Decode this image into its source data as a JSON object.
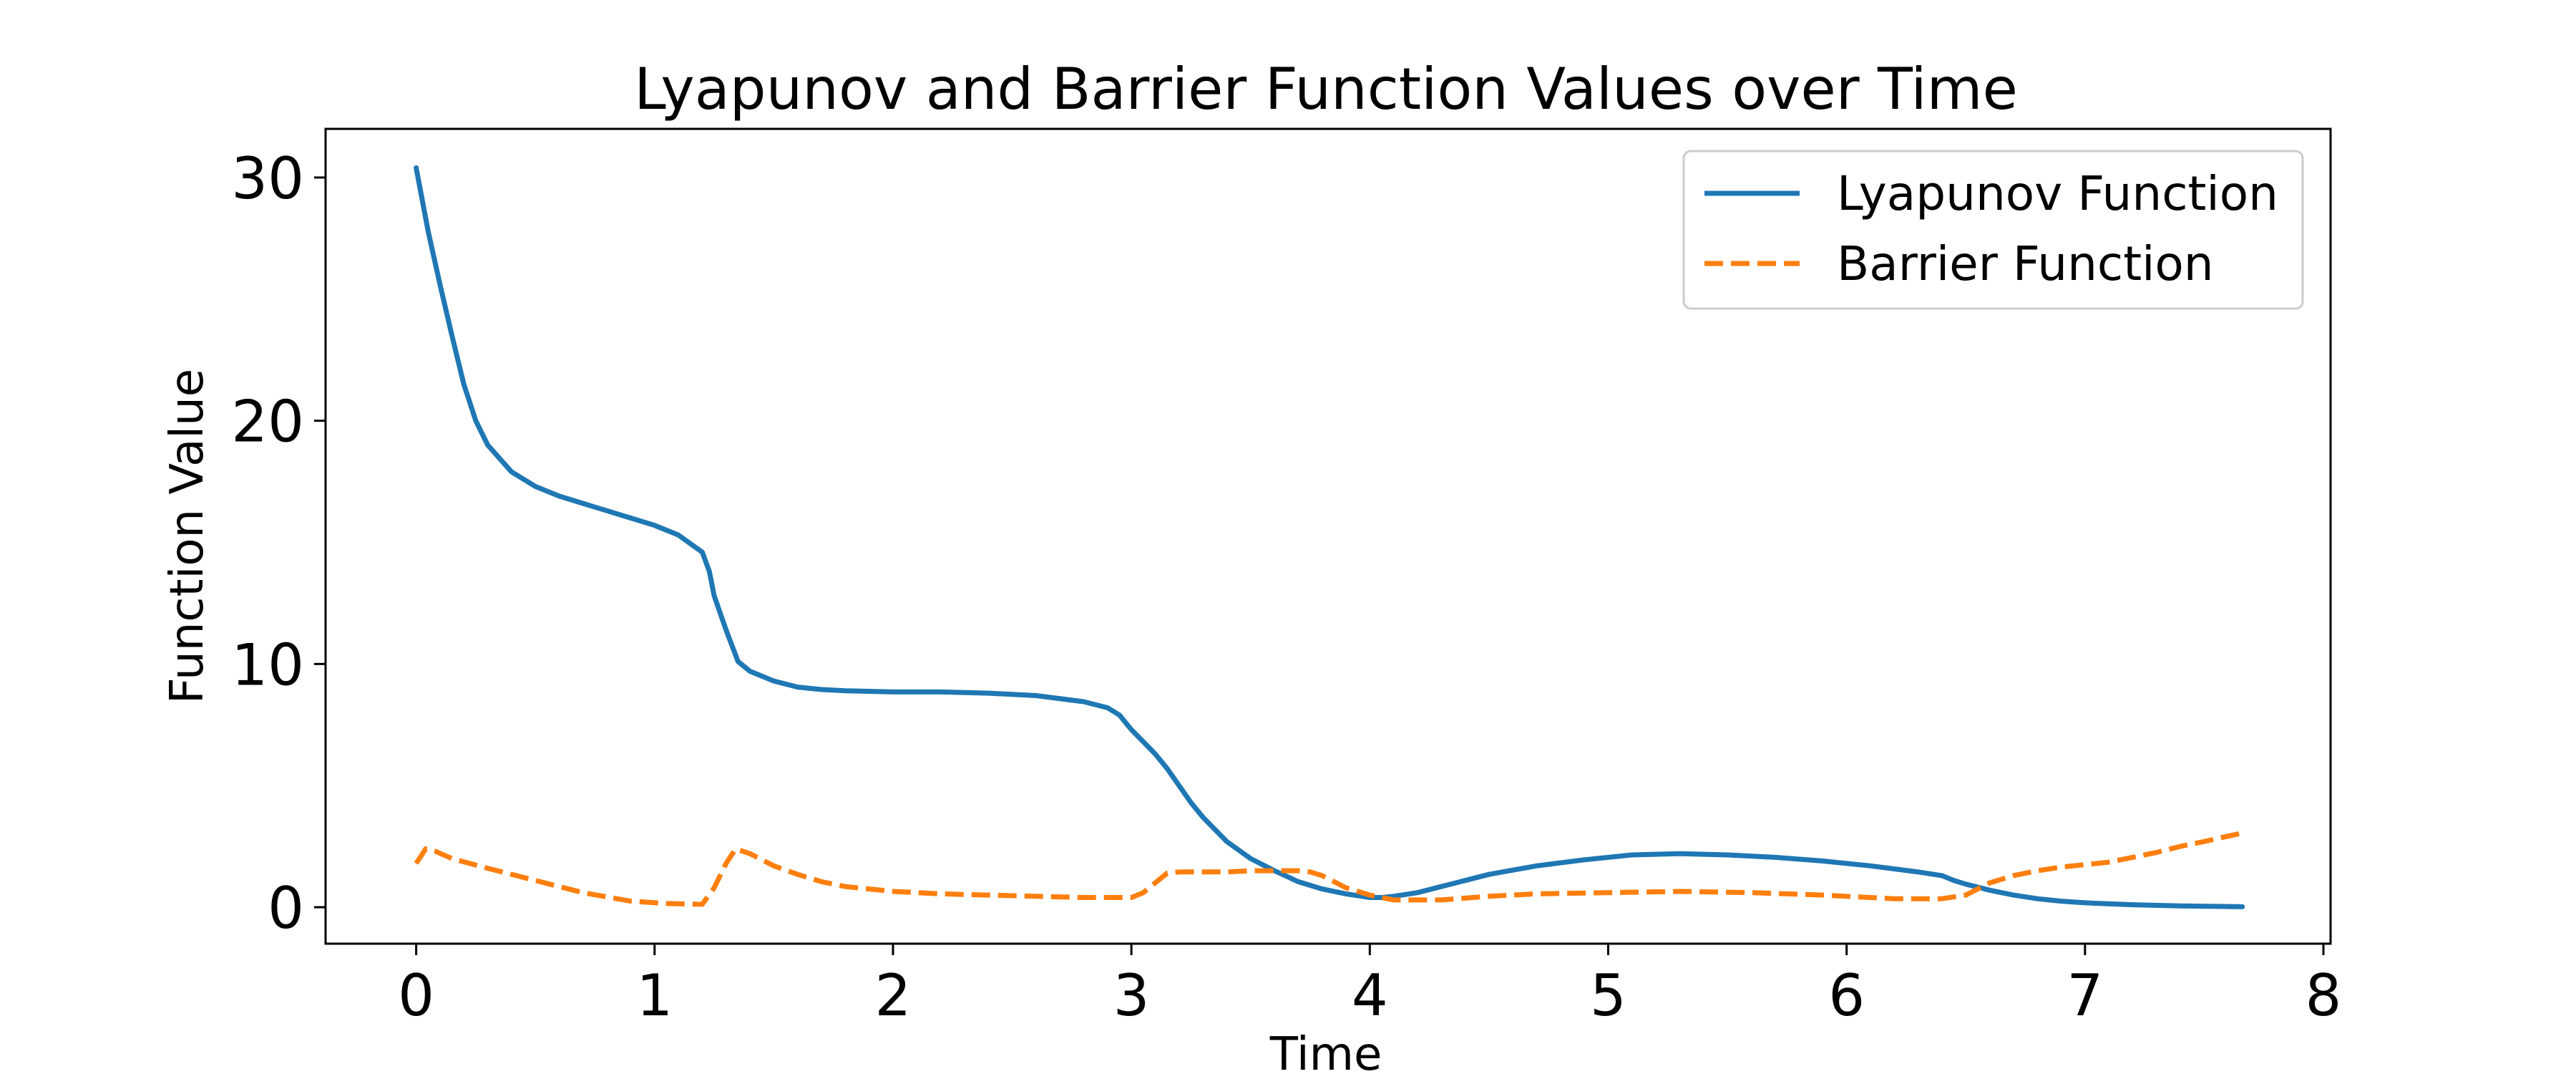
{
  "chart_data": {
    "type": "line",
    "title": "Lyapunov and Barrier Function Values over Time",
    "xlabel": "Time",
    "ylabel": "Function Value",
    "xlim": [
      -0.38,
      8.03
    ],
    "ylim": [
      -1.5,
      32.0
    ],
    "xticks": [
      0,
      1,
      2,
      3,
      4,
      5,
      6,
      7,
      8
    ],
    "yticks": [
      0,
      10,
      20,
      30
    ],
    "grid": false,
    "legend_position": "top-right",
    "series": [
      {
        "name": "Lyapunov Function",
        "color": "#1f77b4",
        "style": "solid",
        "x": [
          0,
          0.05,
          0.1,
          0.15,
          0.2,
          0.25,
          0.3,
          0.4,
          0.5,
          0.6,
          0.7,
          0.8,
          0.9,
          1.0,
          1.1,
          1.2,
          1.23,
          1.25,
          1.3,
          1.35,
          1.4,
          1.5,
          1.6,
          1.7,
          1.8,
          2.0,
          2.2,
          2.4,
          2.6,
          2.8,
          2.9,
          2.95,
          3.0,
          3.05,
          3.1,
          3.15,
          3.2,
          3.25,
          3.3,
          3.4,
          3.5,
          3.6,
          3.7,
          3.8,
          3.9,
          4.0,
          4.05,
          4.1,
          4.2,
          4.3,
          4.4,
          4.5,
          4.7,
          4.9,
          5.1,
          5.3,
          5.5,
          5.7,
          5.9,
          6.1,
          6.3,
          6.4,
          6.45,
          6.5,
          6.6,
          6.7,
          6.8,
          6.9,
          7.0,
          7.2,
          7.4,
          7.66
        ],
        "values": [
          30.4,
          27.8,
          25.6,
          23.5,
          21.5,
          20.0,
          19.0,
          17.9,
          17.3,
          16.9,
          16.6,
          16.3,
          16.0,
          15.7,
          15.3,
          14.6,
          13.8,
          12.8,
          11.4,
          10.1,
          9.7,
          9.3,
          9.05,
          8.95,
          8.9,
          8.85,
          8.85,
          8.8,
          8.7,
          8.45,
          8.2,
          7.9,
          7.3,
          6.8,
          6.3,
          5.7,
          5.0,
          4.3,
          3.7,
          2.7,
          2.0,
          1.5,
          1.05,
          0.75,
          0.55,
          0.4,
          0.4,
          0.45,
          0.6,
          0.85,
          1.1,
          1.35,
          1.7,
          1.95,
          2.15,
          2.2,
          2.15,
          2.05,
          1.9,
          1.7,
          1.45,
          1.3,
          1.1,
          0.95,
          0.7,
          0.5,
          0.35,
          0.25,
          0.18,
          0.1,
          0.05,
          0.02
        ]
      },
      {
        "name": "Barrier Function",
        "color": "#ff7f0e",
        "style": "dashed",
        "x": [
          0,
          0.04,
          0.08,
          0.15,
          0.3,
          0.5,
          0.7,
          0.9,
          1.05,
          1.2,
          1.25,
          1.3,
          1.34,
          1.4,
          1.5,
          1.6,
          1.7,
          1.8,
          2.0,
          2.2,
          2.4,
          2.6,
          2.8,
          3.0,
          3.05,
          3.1,
          3.15,
          3.2,
          3.3,
          3.4,
          3.5,
          3.6,
          3.7,
          3.75,
          3.8,
          3.85,
          3.9,
          4.0,
          4.1,
          4.3,
          4.5,
          4.7,
          5.0,
          5.3,
          5.6,
          5.9,
          6.2,
          6.4,
          6.5,
          6.55,
          6.6,
          6.7,
          6.8,
          6.9,
          7.0,
          7.1,
          7.2,
          7.3,
          7.4,
          7.5,
          7.66
        ],
        "values": [
          1.8,
          2.4,
          2.3,
          2.0,
          1.6,
          1.1,
          0.6,
          0.25,
          0.15,
          0.12,
          0.8,
          1.8,
          2.4,
          2.2,
          1.7,
          1.35,
          1.05,
          0.85,
          0.65,
          0.55,
          0.5,
          0.45,
          0.4,
          0.4,
          0.6,
          1.0,
          1.4,
          1.45,
          1.45,
          1.45,
          1.5,
          1.5,
          1.5,
          1.45,
          1.3,
          1.05,
          0.8,
          0.5,
          0.3,
          0.3,
          0.45,
          0.55,
          0.6,
          0.65,
          0.6,
          0.5,
          0.35,
          0.35,
          0.5,
          0.75,
          1.0,
          1.3,
          1.5,
          1.65,
          1.75,
          1.85,
          2.05,
          2.25,
          2.5,
          2.7,
          3.05
        ]
      }
    ]
  }
}
